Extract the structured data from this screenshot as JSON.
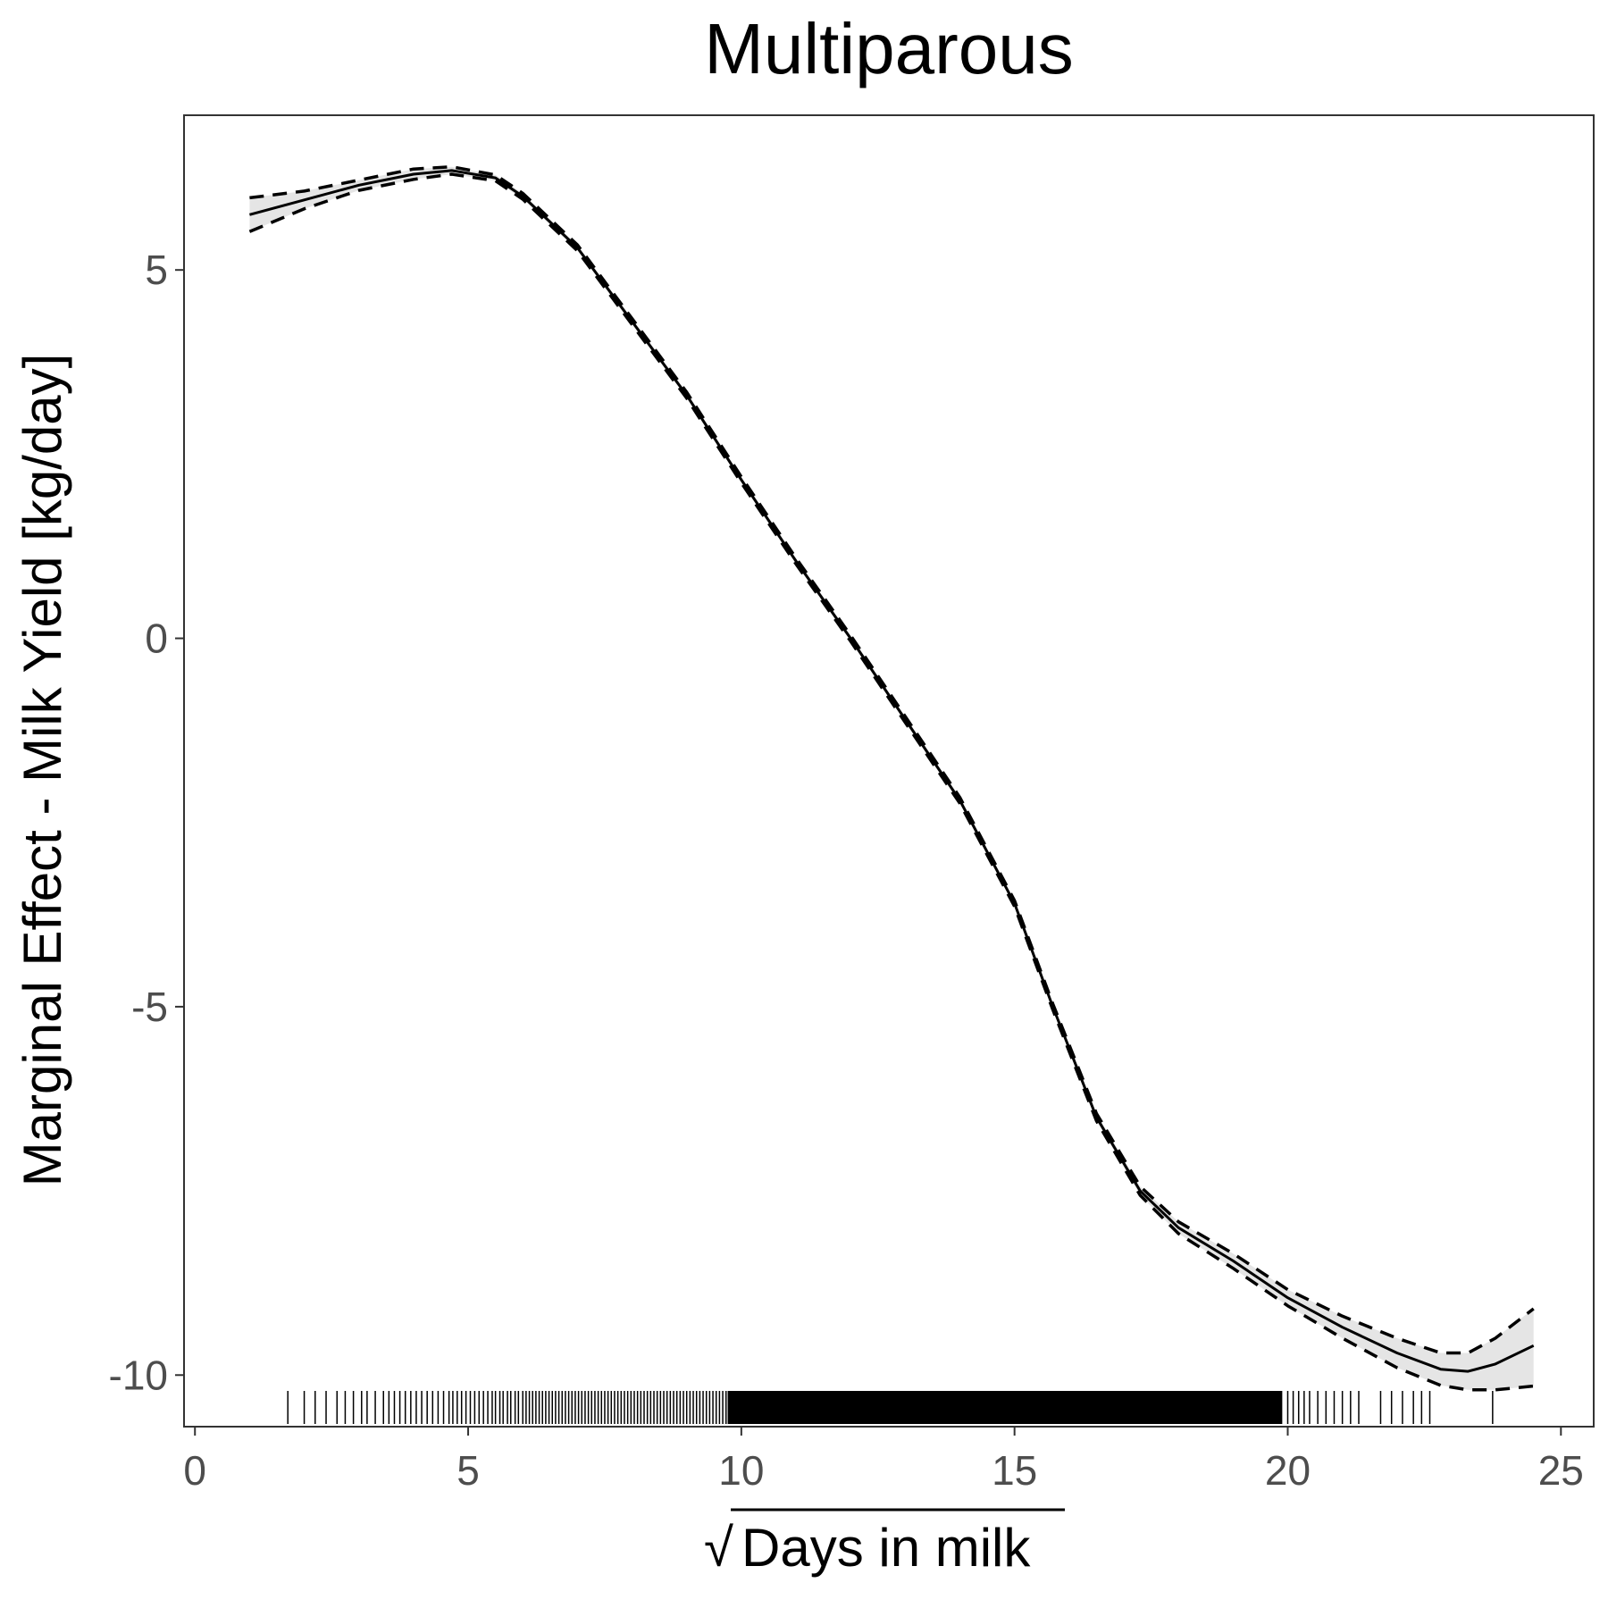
{
  "chart_data": {
    "type": "line",
    "title": "Multiparous",
    "xlabel": "Days in milk",
    "xlabel_prefix": "√",
    "ylabel": "Marginal Effect - Milk Yield [kg/day]",
    "xlim": [
      -0.2,
      25.6
    ],
    "ylim": [
      -10.7,
      7.1
    ],
    "xticks": [
      0,
      5,
      10,
      15,
      20,
      25
    ],
    "xtick_labels": [
      "0",
      "5",
      "10",
      "15",
      "20",
      "25"
    ],
    "yticks": [
      5,
      0,
      -5,
      -10
    ],
    "ytick_labels": [
      "5",
      "0",
      "-5",
      "-10"
    ],
    "grid": false,
    "series": [
      {
        "style": "solid",
        "x": [
          1.0,
          2.0,
          3.0,
          4.0,
          4.7,
          5.5,
          6.0,
          7.0,
          8.0,
          9.0,
          10.0,
          11.0,
          12.0,
          13.0,
          14.0,
          15.0,
          15.7,
          16.5,
          17.3,
          18.0,
          19.0,
          20.0,
          21.0,
          22.0,
          22.8,
          23.3,
          23.8,
          24.5
        ],
        "y": [
          5.75,
          5.95,
          6.15,
          6.3,
          6.35,
          6.25,
          6.0,
          5.3,
          4.3,
          3.3,
          2.15,
          1.05,
          0.0,
          -1.1,
          -2.2,
          -3.6,
          -5.0,
          -6.5,
          -7.5,
          -8.0,
          -8.45,
          -8.95,
          -9.35,
          -9.7,
          -9.92,
          -9.95,
          -9.85,
          -9.6
        ]
      },
      {
        "style": "dashed",
        "x": [
          1.0,
          2.0,
          3.0,
          4.0,
          4.7,
          5.5,
          6.0,
          7.0,
          8.0,
          9.0,
          10.0,
          11.0,
          12.0,
          13.0,
          14.0,
          15.0,
          15.7,
          16.5,
          17.3,
          18.0,
          19.0,
          20.0,
          21.0,
          22.0,
          22.8,
          23.3,
          23.8,
          24.5
        ],
        "y": [
          5.98,
          6.07,
          6.22,
          6.37,
          6.4,
          6.29,
          6.04,
          5.34,
          4.34,
          3.34,
          2.19,
          1.09,
          0.04,
          -1.06,
          -2.16,
          -3.56,
          -4.96,
          -6.45,
          -7.44,
          -7.92,
          -8.35,
          -8.84,
          -9.2,
          -9.5,
          -9.7,
          -9.7,
          -9.5,
          -9.1
        ]
      },
      {
        "style": "dashed",
        "x": [
          1.0,
          2.0,
          3.0,
          4.0,
          4.7,
          5.5,
          6.0,
          7.0,
          8.0,
          9.0,
          10.0,
          11.0,
          12.0,
          13.0,
          14.0,
          15.0,
          15.7,
          16.5,
          17.3,
          18.0,
          19.0,
          20.0,
          21.0,
          22.0,
          22.8,
          23.3,
          23.8,
          24.5
        ],
        "y": [
          5.52,
          5.83,
          6.08,
          6.23,
          6.3,
          6.21,
          5.96,
          5.26,
          4.26,
          3.26,
          2.11,
          1.01,
          -0.04,
          -1.14,
          -2.24,
          -3.64,
          -5.04,
          -6.55,
          -7.56,
          -8.08,
          -8.55,
          -9.06,
          -9.5,
          -9.9,
          -10.14,
          -10.2,
          -10.2,
          -10.15
        ]
      }
    ],
    "rug": [
      1.7,
      2.0,
      2.2,
      2.4,
      2.6,
      2.75,
      2.9,
      3.05,
      3.15,
      3.3,
      3.45,
      3.55,
      3.65,
      3.75,
      3.85,
      3.95,
      4.05,
      4.15,
      4.25,
      4.35,
      4.45,
      4.55,
      4.65,
      4.72,
      4.8,
      4.88,
      4.96,
      5.04,
      5.12,
      5.2,
      5.28,
      5.36,
      5.44,
      5.5,
      5.58,
      5.64,
      5.72,
      5.78,
      5.86,
      5.92,
      6.0,
      6.06,
      6.12,
      6.18,
      6.24,
      6.3,
      6.36,
      6.42,
      6.48,
      6.54,
      6.6,
      6.66,
      6.72,
      6.78,
      6.84,
      6.9,
      6.96,
      7.02,
      7.08,
      7.14,
      7.2,
      7.26,
      7.32,
      7.38,
      7.44,
      7.5,
      7.56,
      7.62,
      7.68,
      7.74,
      7.8,
      7.86,
      7.92,
      7.98,
      8.04,
      8.1,
      8.16,
      8.22,
      8.28,
      8.34,
      8.4,
      8.46,
      8.52,
      8.58,
      8.64,
      8.7,
      8.76,
      8.82,
      8.88,
      8.94,
      9.0,
      9.06,
      9.12,
      9.18,
      9.24,
      9.3,
      9.36,
      9.42,
      9.48,
      9.54,
      9.6,
      9.66,
      9.72,
      20.0,
      20.1,
      20.2,
      20.3,
      20.4,
      20.55,
      20.7,
      20.85,
      21.0,
      21.15,
      21.3,
      21.7,
      21.9,
      22.1,
      22.3,
      22.45,
      22.6,
      23.75
    ],
    "rug_dense_range": [
      9.75,
      19.9
    ]
  }
}
